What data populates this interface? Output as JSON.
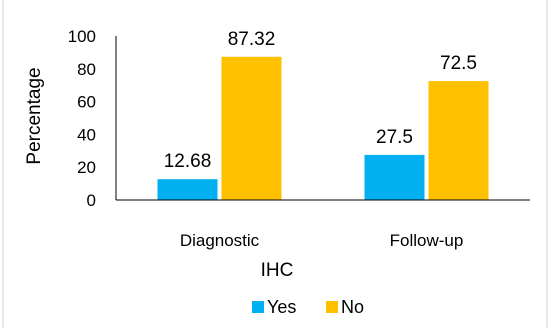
{
  "chart_data": {
    "type": "bar",
    "categories": [
      "Diagnostic",
      "Follow-up"
    ],
    "series": [
      {
        "name": "Yes",
        "values": [
          12.68,
          27.5
        ],
        "color": "#00B0F0"
      },
      {
        "name": "No",
        "values": [
          87.32,
          72.5
        ],
        "color": "#FFC000"
      }
    ],
    "data_labels": [
      [
        "12.68",
        "27.5"
      ],
      [
        "87.32",
        "72.5"
      ]
    ],
    "xlabel": "IHC",
    "ylabel": "Percentage",
    "ylim": [
      0,
      100
    ],
    "yticks": [
      0,
      20,
      40,
      60,
      80,
      100
    ],
    "grid": false,
    "legend_position": "bottom"
  }
}
